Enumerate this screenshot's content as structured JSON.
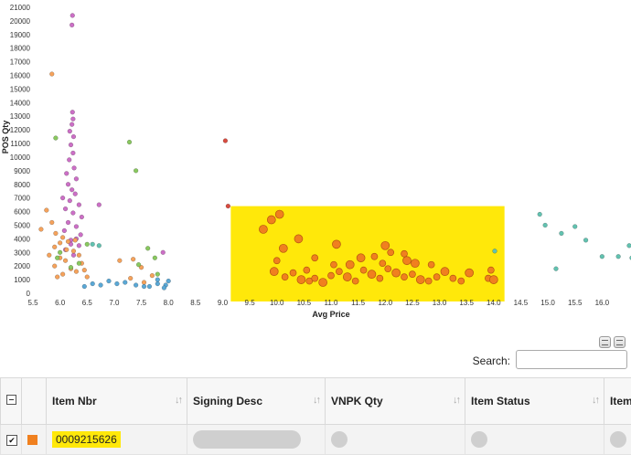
{
  "chart_data": {
    "type": "scatter",
    "xlabel": "Avg Price",
    "ylabel": "POS Qty",
    "xlim": [
      5.5,
      16.5
    ],
    "ylim": [
      0,
      21000
    ],
    "xticks": [
      "5.5",
      "6.0",
      "6.5",
      "7.0",
      "7.5",
      "8.0",
      "8.5",
      "9.0",
      "9.5",
      "10.0",
      "10.5",
      "11.0",
      "11.5",
      "12.0",
      "12.5",
      "13.0",
      "13.5",
      "14.0",
      "14.5",
      "15.0",
      "15.5",
      "16.0"
    ],
    "yticks": [
      "0",
      "1000",
      "2000",
      "3000",
      "4000",
      "5000",
      "6000",
      "7000",
      "8000",
      "9000",
      "10000",
      "11000",
      "12000",
      "13000",
      "14000",
      "15000",
      "16000",
      "17000",
      "18000",
      "19000",
      "20000",
      "21000"
    ],
    "grid": false,
    "highlight": {
      "x": [
        9.15,
        14.2
      ],
      "y": [
        -600,
        6400
      ],
      "color": "#ffe80a"
    },
    "series": [
      {
        "color": "#cc6fc6",
        "points": [
          [
            6.23,
            20400
          ],
          [
            6.22,
            19700
          ],
          [
            6.23,
            13300
          ],
          [
            6.24,
            12800
          ],
          [
            6.22,
            12400
          ],
          [
            6.18,
            11900
          ],
          [
            6.25,
            11500
          ],
          [
            6.2,
            10900
          ],
          [
            6.24,
            10300
          ],
          [
            6.17,
            9800
          ],
          [
            6.26,
            9200
          ],
          [
            6.12,
            8800
          ],
          [
            6.3,
            8400
          ],
          [
            6.15,
            8000
          ],
          [
            6.22,
            7600
          ],
          [
            6.28,
            7300
          ],
          [
            6.05,
            7000
          ],
          [
            6.18,
            6800
          ],
          [
            6.35,
            6500
          ],
          [
            6.1,
            6200
          ],
          [
            6.24,
            5900
          ],
          [
            6.4,
            5600
          ],
          [
            6.15,
            5200
          ],
          [
            6.3,
            4900
          ],
          [
            6.08,
            4600
          ],
          [
            6.38,
            4300
          ],
          [
            6.2,
            3900
          ],
          [
            6.35,
            3500
          ],
          [
            6.1,
            3200
          ],
          [
            6.25,
            2800
          ],
          [
            6.72,
            6500
          ],
          [
            6.3,
            4000
          ],
          [
            6.2,
            3600
          ],
          [
            7.9,
            3000
          ]
        ]
      },
      {
        "color": "#f5a25b",
        "points": [
          [
            5.85,
            16100
          ],
          [
            5.95,
            1200
          ],
          [
            6.0,
            2600
          ],
          [
            5.9,
            3400
          ],
          [
            6.05,
            4100
          ],
          [
            6.15,
            3800
          ],
          [
            6.25,
            3100
          ],
          [
            6.35,
            2800
          ],
          [
            6.45,
            1700
          ],
          [
            6.5,
            1200
          ],
          [
            5.75,
            6100
          ],
          [
            5.85,
            5200
          ],
          [
            5.92,
            4400
          ],
          [
            6.0,
            3700
          ],
          [
            6.1,
            2400
          ],
          [
            6.2,
            1800
          ],
          [
            6.3,
            1600
          ],
          [
            6.4,
            2200
          ],
          [
            5.9,
            2000
          ],
          [
            6.05,
            1400
          ],
          [
            7.1,
            2400
          ],
          [
            7.35,
            2500
          ],
          [
            7.5,
            1900
          ],
          [
            7.7,
            1300
          ],
          [
            7.3,
            1100
          ],
          [
            7.55,
            800
          ],
          [
            5.65,
            4700
          ],
          [
            5.8,
            2800
          ],
          [
            6.12,
            3200
          ],
          [
            6.28,
            3900
          ]
        ]
      },
      {
        "color": "#89c85f",
        "points": [
          [
            5.92,
            11400
          ],
          [
            7.28,
            11100
          ],
          [
            7.4,
            9000
          ],
          [
            7.62,
            3300
          ],
          [
            7.75,
            2600
          ],
          [
            6.5,
            3600
          ],
          [
            6.0,
            3000
          ],
          [
            6.35,
            2200
          ],
          [
            7.45,
            2100
          ],
          [
            7.8,
            1400
          ],
          [
            6.2,
            1900
          ],
          [
            5.95,
            2600
          ]
        ]
      },
      {
        "color": "#d94b3f",
        "points": [
          [
            9.05,
            11200
          ],
          [
            9.1,
            6400
          ]
        ]
      },
      {
        "color": "#5aa8d6",
        "points": [
          [
            6.6,
            700
          ],
          [
            6.75,
            600
          ],
          [
            6.9,
            900
          ],
          [
            7.05,
            700
          ],
          [
            7.2,
            800
          ],
          [
            7.4,
            600
          ],
          [
            7.55,
            500
          ],
          [
            7.65,
            500
          ],
          [
            7.8,
            700
          ],
          [
            7.95,
            600
          ],
          [
            8.0,
            900
          ],
          [
            7.92,
            400
          ],
          [
            6.45,
            500
          ],
          [
            7.8,
            1000
          ]
        ]
      },
      {
        "color": "#62c2b0",
        "points": [
          [
            6.6,
            3600
          ],
          [
            6.72,
            3500
          ],
          [
            14.85,
            5800
          ],
          [
            14.95,
            5000
          ],
          [
            15.25,
            4400
          ],
          [
            15.5,
            4900
          ],
          [
            15.7,
            3900
          ],
          [
            16.0,
            2700
          ],
          [
            16.3,
            2700
          ],
          [
            16.5,
            3500
          ],
          [
            16.55,
            2600
          ],
          [
            15.15,
            1800
          ],
          [
            14.02,
            3100
          ]
        ]
      },
      {
        "color": "#f0801f",
        "stroke": "#b4550f",
        "points": [
          [
            9.75,
            4700
          ],
          [
            9.9,
            5400
          ],
          [
            10.05,
            5800
          ],
          [
            10.4,
            4000
          ],
          [
            10.12,
            3300
          ],
          [
            10.0,
            2400
          ],
          [
            9.95,
            1600
          ],
          [
            10.15,
            1200
          ],
          [
            10.3,
            1500
          ],
          [
            10.45,
            1000
          ],
          [
            10.6,
            900
          ],
          [
            10.7,
            1100
          ],
          [
            10.85,
            800
          ],
          [
            11.0,
            1300
          ],
          [
            11.15,
            1600
          ],
          [
            11.3,
            1200
          ],
          [
            11.45,
            900
          ],
          [
            11.6,
            1700
          ],
          [
            11.75,
            1400
          ],
          [
            11.9,
            1100
          ],
          [
            12.05,
            1800
          ],
          [
            12.2,
            1500
          ],
          [
            12.35,
            1200
          ],
          [
            12.5,
            1400
          ],
          [
            12.65,
            1000
          ],
          [
            12.8,
            900
          ],
          [
            12.95,
            1200
          ],
          [
            13.1,
            1600
          ],
          [
            13.25,
            1100
          ],
          [
            13.4,
            900
          ],
          [
            13.55,
            1500
          ],
          [
            13.95,
            1700
          ],
          [
            13.9,
            1100
          ],
          [
            14.0,
            1000
          ],
          [
            11.1,
            3600
          ],
          [
            11.05,
            2100
          ],
          [
            11.55,
            2600
          ],
          [
            11.95,
            2200
          ],
          [
            12.35,
            2900
          ],
          [
            12.55,
            2200
          ],
          [
            12.0,
            3500
          ],
          [
            10.7,
            2600
          ],
          [
            11.35,
            2100
          ],
          [
            11.8,
            2700
          ],
          [
            12.1,
            3000
          ],
          [
            12.4,
            2400
          ],
          [
            10.55,
            1700
          ],
          [
            12.85,
            2100
          ]
        ]
      }
    ]
  },
  "toolbar": {
    "search_label": "Search:",
    "search_value": ""
  },
  "table": {
    "headers": [
      "Item Nbr",
      "Signing Desc",
      "VNPK Qty",
      "Item Status",
      "Item"
    ],
    "sort_glyph": "↓↑",
    "rows": [
      {
        "checked_glyph": "✔",
        "swatch_color": "#f0801f",
        "item_nbr": "0009215626"
      }
    ]
  }
}
